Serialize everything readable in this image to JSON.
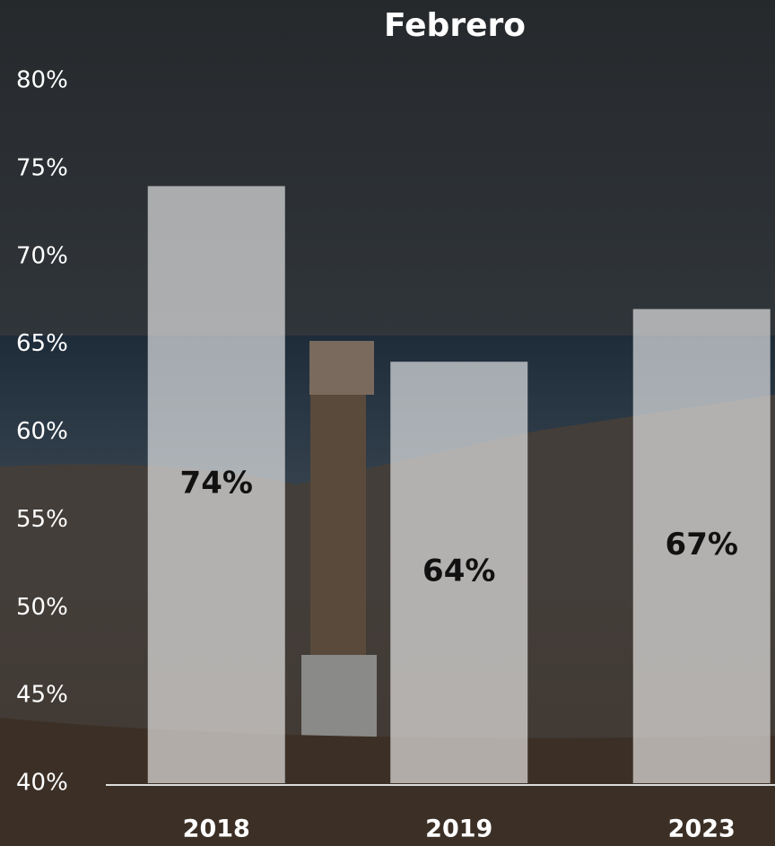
{
  "chart_data": {
    "type": "bar",
    "title": "Febrero",
    "categories": [
      "2018",
      "2019",
      "2023"
    ],
    "values": [
      74,
      64,
      67
    ],
    "value_labels": [
      "74%",
      "64%",
      "67%"
    ],
    "color": "#ffffff",
    "ylim": [
      40,
      80
    ],
    "yticks": [
      {
        "value": 40,
        "label": "40%"
      },
      {
        "value": 45,
        "label": "45%"
      },
      {
        "value": 50,
        "label": "50%"
      },
      {
        "value": 55,
        "label": "55%"
      },
      {
        "value": 60,
        "label": "60%"
      },
      {
        "value": 65,
        "label": "65%"
      },
      {
        "value": 70,
        "label": "70%"
      },
      {
        "value": 75,
        "label": "75%"
      },
      {
        "value": 80,
        "label": "80%"
      }
    ],
    "grid": false
  }
}
